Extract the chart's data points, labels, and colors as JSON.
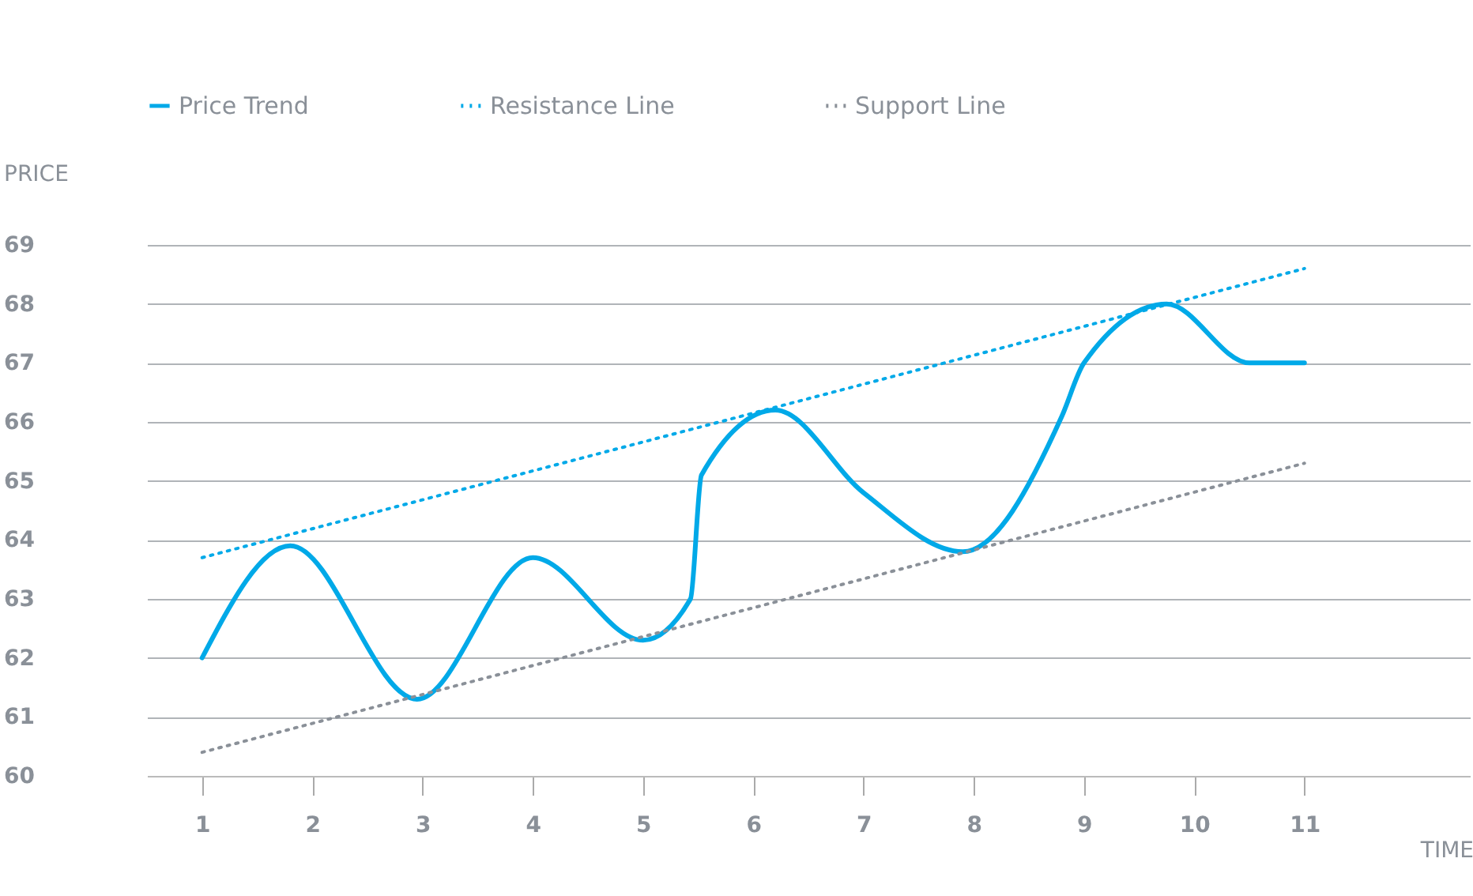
{
  "chart_data": {
    "type": "line",
    "xlabel": "TIME",
    "ylabel": "PRICE",
    "xlim": [
      0.5,
      12.5
    ],
    "xticks": [
      1,
      2,
      3,
      4,
      5,
      6,
      7,
      8,
      9,
      10,
      11
    ],
    "ylim": [
      60,
      69
    ],
    "yticks": [
      60,
      61,
      62,
      63,
      64,
      65,
      66,
      67,
      68,
      69
    ],
    "grid": "y",
    "legend": "top",
    "marker": "none",
    "series": [
      {
        "name": "Price Trend",
        "color": "#00a9e8",
        "line_style": "solid",
        "x": [
          1,
          1.8,
          2.95,
          4,
          5,
          5.43,
          5.53,
          6.2,
          7,
          7.9,
          8.8,
          9,
          9.75,
          10.5,
          11
        ],
        "values": [
          62.0,
          63.9,
          61.3,
          63.7,
          62.3,
          63.0,
          65.1,
          66.2,
          64.8,
          63.8,
          66.1,
          67.0,
          68.0,
          67.0,
          67.0
        ]
      },
      {
        "name": "Resistance Line",
        "color": "#00a9e8",
        "line_style": "dotted",
        "x": [
          1,
          11
        ],
        "values": [
          63.7,
          68.6
        ]
      },
      {
        "name": "Support Line",
        "color": "#8a9098",
        "line_style": "dotted",
        "x": [
          1,
          11
        ],
        "values": [
          60.4,
          65.3
        ]
      }
    ]
  }
}
